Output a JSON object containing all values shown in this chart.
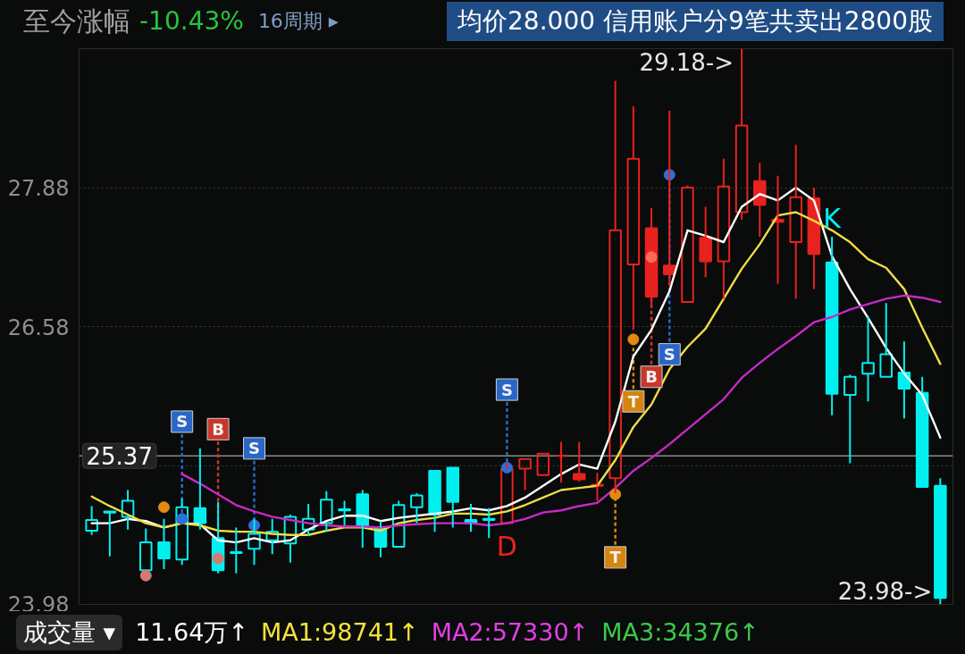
{
  "chart_data": {
    "type": "candlestick",
    "title": "至今涨幅",
    "subtitle": "-10.43%",
    "annotations": [
      "16周期 ▸",
      "均价28.000  信用账户分9笔共卖出2800股",
      "成交量 ▾",
      "11.64万↑",
      "MA1:98741↑",
      "MA2:57330↑",
      "MA3:34376↑"
    ],
    "categories": [
      null,
      null,
      null,
      null,
      null,
      null,
      null,
      null,
      null,
      null,
      null,
      null,
      null,
      null,
      null,
      null,
      null,
      null,
      null,
      null,
      null,
      null,
      null,
      null,
      null,
      null,
      null,
      null,
      null,
      null,
      null,
      null,
      null,
      null,
      null,
      null,
      null,
      null,
      null,
      null,
      null,
      null,
      null,
      null,
      null,
      null,
      null,
      null
    ],
    "ohlc": [
      [
        24.67,
        24.9,
        24.63,
        24.77
      ],
      [
        24.85,
        24.85,
        24.43,
        24.84
      ],
      [
        24.8,
        25.05,
        24.68,
        24.95
      ],
      [
        24.3,
        24.69,
        24.3,
        24.56
      ],
      [
        24.56,
        24.78,
        24.31,
        24.41
      ],
      [
        24.4,
        24.97,
        24.35,
        24.89
      ],
      [
        24.88,
        25.44,
        24.68,
        24.74
      ],
      [
        24.6,
        24.94,
        24.27,
        24.3
      ],
      [
        24.47,
        24.7,
        24.27,
        24.46
      ],
      [
        24.5,
        24.78,
        24.35,
        24.64
      ],
      [
        24.58,
        24.78,
        24.45,
        24.66
      ],
      [
        24.55,
        24.82,
        24.37,
        24.8
      ],
      [
        24.68,
        24.92,
        24.62,
        24.78
      ],
      [
        24.74,
        25.04,
        24.66,
        24.96
      ],
      [
        24.87,
        24.95,
        24.72,
        24.86
      ],
      [
        25.01,
        25.05,
        24.51,
        24.72
      ],
      [
        24.7,
        24.76,
        24.42,
        24.52
      ],
      [
        24.52,
        24.95,
        24.52,
        24.91
      ],
      [
        24.89,
        25.02,
        24.74,
        25.0
      ],
      [
        25.23,
        25.23,
        24.66,
        24.82
      ],
      [
        25.26,
        25.26,
        24.7,
        24.94
      ],
      [
        24.77,
        24.92,
        24.66,
        24.74
      ],
      [
        24.78,
        24.88,
        24.6,
        24.77
      ],
      [
        24.74,
        25.3,
        24.74,
        25.25
      ],
      [
        25.25,
        25.34,
        25.05,
        25.34
      ],
      [
        25.19,
        25.39,
        25.19,
        25.39
      ],
      [
        25.37,
        25.5,
        25.12,
        25.37
      ],
      [
        25.2,
        25.5,
        25.13,
        25.15
      ],
      [
        25.09,
        25.21,
        24.95,
        25.1
      ],
      [
        25.16,
        28.88,
        25.02,
        27.48
      ],
      [
        27.16,
        28.64,
        26.55,
        28.15
      ],
      [
        27.5,
        27.69,
        26.78,
        26.86
      ],
      [
        27.15,
        28.6,
        26.96,
        27.07
      ],
      [
        26.81,
        27.9,
        26.81,
        27.88
      ],
      [
        27.41,
        27.7,
        27.04,
        27.19
      ],
      [
        27.19,
        28.15,
        26.84,
        27.89
      ],
      [
        27.65,
        29.18,
        27.58,
        28.46
      ],
      [
        27.94,
        28.11,
        27.42,
        27.72
      ],
      [
        27.58,
        27.99,
        26.98,
        27.56
      ],
      [
        27.37,
        28.28,
        26.84,
        27.79
      ],
      [
        27.78,
        27.88,
        26.93,
        27.26
      ],
      [
        27.18,
        27.42,
        25.75,
        25.95
      ],
      [
        25.94,
        26.13,
        25.3,
        26.11
      ],
      [
        26.14,
        26.68,
        25.88,
        26.24
      ],
      [
        26.11,
        26.8,
        26.11,
        26.32
      ],
      [
        26.15,
        26.44,
        25.72,
        26.0
      ],
      [
        25.96,
        26.11,
        25.08,
        25.08
      ],
      [
        25.09,
        25.16,
        23.98,
        24.04
      ]
    ],
    "colors": [
      "#00f0f0",
      "#00f0f0",
      "#00f0f0",
      "#00f0f0",
      "#00f0f0",
      "#00f0f0",
      "#00f0f0",
      "#00f0f0",
      "#00f0f0",
      "#00f0f0",
      "#00f0f0",
      "#00f0f0",
      "#00f0f0",
      "#00f0f0",
      "#00f0f0",
      "#00f0f0",
      "#00f0f0",
      "#00f0f0",
      "#00f0f0",
      "#00f0f0",
      "#00f0f0",
      "#00f0f0",
      "#00f0f0",
      "#e8221e",
      "#e8221e",
      "#e8221e",
      "#e8221e",
      "#e8221e",
      "#e8221e",
      "#e8221e",
      "#e8221e",
      "#e8221e",
      "#e8221e",
      "#e8221e",
      "#e8221e",
      "#e8221e",
      "#e8221e",
      "#e8221e",
      "#e8221e",
      "#e8221e",
      "#e8221e",
      "#00f0f0",
      "#00f0f0",
      "#00f0f0",
      "#00f0f0",
      "#00f0f0",
      "#00f0f0",
      "#00f0f0"
    ],
    "value_labels": [
      null,
      null,
      null,
      null,
      null,
      null,
      null,
      null,
      null,
      null,
      null,
      null,
      null,
      null,
      null,
      null,
      null,
      null,
      null,
      null,
      null,
      null,
      null,
      "D",
      null,
      null,
      null,
      null,
      null,
      null,
      null,
      null,
      null,
      null,
      null,
      null,
      "29.18->",
      null,
      null,
      null,
      null,
      "K",
      null,
      null,
      null,
      null,
      null,
      "23.98->"
    ],
    "series": [
      {
        "type": "line",
        "color": "#ffffff",
        "values": [
          24.74,
          24.74,
          24.78,
          24.76,
          24.7,
          24.74,
          24.73,
          24.58,
          24.56,
          24.6,
          24.56,
          24.58,
          24.68,
          24.76,
          24.81,
          24.81,
          24.76,
          24.79,
          24.81,
          24.83,
          24.85,
          24.88,
          24.86,
          24.9,
          24.98,
          25.09,
          25.2,
          25.29,
          25.25,
          25.69,
          26.3,
          26.55,
          26.91,
          27.48,
          27.43,
          27.37,
          27.7,
          27.82,
          27.76,
          27.88,
          27.76,
          27.24,
          26.93,
          26.66,
          26.38,
          26.14,
          25.94,
          25.54
        ]
      },
      {
        "type": "line",
        "color": "#f0dc46",
        "values": [
          24.99,
          24.9,
          24.82,
          24.74,
          24.7,
          24.74,
          24.72,
          24.67,
          24.66,
          24.66,
          24.64,
          24.63,
          24.63,
          24.67,
          24.7,
          24.7,
          24.67,
          24.74,
          24.77,
          24.79,
          24.83,
          24.83,
          24.82,
          24.85,
          24.91,
          24.98,
          25.05,
          25.07,
          25.09,
          25.33,
          25.64,
          25.85,
          26.18,
          26.39,
          26.56,
          26.84,
          27.12,
          27.35,
          27.62,
          27.65,
          27.57,
          27.48,
          27.37,
          27.21,
          27.13,
          26.93,
          26.57,
          26.23
        ]
      },
      {
        "type": "line",
        "color": "#c62ac6",
        "values": [
          null,
          null,
          null,
          null,
          null,
          25.2,
          25.11,
          25.01,
          24.91,
          24.85,
          24.8,
          24.77,
          24.74,
          24.72,
          24.71,
          24.71,
          24.7,
          24.72,
          24.73,
          24.74,
          24.74,
          24.74,
          24.72,
          24.74,
          24.78,
          24.84,
          24.86,
          24.9,
          24.93,
          25.07,
          25.23,
          25.35,
          25.48,
          25.62,
          25.76,
          25.9,
          26.1,
          26.24,
          26.37,
          26.49,
          26.62,
          26.67,
          26.74,
          26.79,
          26.84,
          26.87,
          26.85,
          26.81
        ]
      },
      {
        "type": "scatter",
        "marker": "circle",
        "values": [
          null,
          null,
          null,
          24.25,
          24.89,
          24.78,
          null,
          24.41,
          null,
          24.72,
          null,
          null,
          null,
          null,
          null,
          null,
          null,
          null,
          null,
          null,
          null,
          null,
          null,
          25.26,
          null,
          null,
          null,
          null,
          null,
          25.01,
          26.46,
          27.23,
          28.0,
          null,
          null,
          null,
          null,
          null,
          null,
          null,
          null,
          null,
          null,
          null,
          null,
          null,
          null,
          null
        ],
        "colors": [
          null,
          null,
          null,
          "#d47a70",
          "#e08a12",
          "#2f6fd8",
          null,
          "#d47a70",
          null,
          "#2f6fd8",
          null,
          null,
          null,
          null,
          null,
          null,
          null,
          null,
          null,
          null,
          null,
          null,
          null,
          "#2f6fd8",
          null,
          null,
          null,
          null,
          null,
          "#e08a12",
          "#e08a12",
          "#ff6a55",
          "#2f6fd8",
          null,
          null,
          null,
          null,
          null,
          null,
          null,
          null,
          null,
          null,
          null,
          null,
          null,
          null,
          null
        ]
      },
      {
        "type": "scatter",
        "marker": "square",
        "line_style": "dashed",
        "values": [
          null,
          null,
          null,
          null,
          null,
          25.69,
          null,
          25.62,
          null,
          25.44,
          null,
          null,
          null,
          null,
          null,
          null,
          null,
          null,
          null,
          null,
          null,
          null,
          null,
          25.99,
          null,
          null,
          null,
          null,
          null,
          24.42,
          25.88,
          26.11,
          26.32,
          null,
          null,
          null,
          null,
          null,
          null,
          null,
          null,
          null,
          null,
          null,
          null,
          null,
          null,
          null
        ],
        "colors": [
          null,
          null,
          null,
          null,
          null,
          "#2a66c8",
          null,
          "#c9372c",
          null,
          "#2a66c8",
          null,
          null,
          null,
          null,
          null,
          null,
          null,
          null,
          null,
          null,
          null,
          null,
          null,
          "#2a66c8",
          null,
          null,
          null,
          null,
          null,
          "#d4850f",
          "#d4850f",
          "#c9372c",
          "#2a66c8",
          null,
          null,
          null,
          null,
          null,
          null,
          null,
          null,
          null,
          null,
          null,
          null,
          null,
          null,
          null
        ],
        "value_labels": [
          null,
          null,
          null,
          null,
          null,
          "S",
          null,
          "B",
          null,
          "S",
          null,
          null,
          null,
          null,
          null,
          null,
          null,
          null,
          null,
          null,
          null,
          null,
          null,
          "S",
          null,
          null,
          null,
          null,
          null,
          "T",
          "T",
          "B",
          "S",
          null,
          null,
          null,
          null,
          null,
          null,
          null,
          null,
          null,
          null,
          null,
          null,
          null,
          null,
          null
        ]
      }
    ],
    "ylim": [
      23.98,
      29.18
    ],
    "yticks": [
      23.98,
      {
        "value": 25.28,
        "label": null
      },
      26.58,
      27.88
    ],
    "ref_lines": [
      {
        "axis": "y",
        "value": 25.37,
        "label": "25.37",
        "color": "#8a8a8a"
      }
    ],
    "grid": "y",
    "tick_labels": "y"
  }
}
